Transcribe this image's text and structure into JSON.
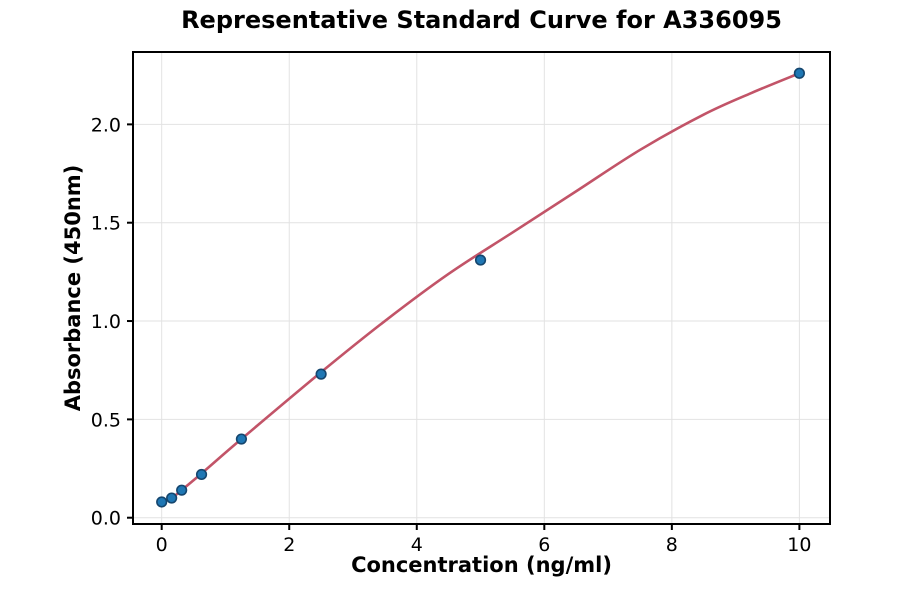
{
  "chart_data": {
    "type": "scatter",
    "title": "Representative Standard Curve for A336095",
    "xlabel": "Concentration (ng/ml)",
    "ylabel": "Absorbance (450nm)",
    "points": {
      "x": [
        0,
        0.156,
        0.313,
        0.625,
        1.25,
        2.5,
        5,
        10
      ],
      "y": [
        0.08,
        0.1,
        0.14,
        0.22,
        0.4,
        0.73,
        1.31,
        2.26
      ]
    },
    "fit_curve": {
      "x": [
        0.2,
        0.625,
        1.25,
        2.5,
        3.5,
        4.5,
        5.5,
        6.5,
        7.5,
        8.5,
        9.25,
        10
      ],
      "y": [
        0.11,
        0.225,
        0.4,
        0.74,
        1.0,
        1.24,
        1.45,
        1.66,
        1.87,
        2.05,
        2.16,
        2.26
      ]
    },
    "x_ticks": {
      "values": [
        0,
        2,
        4,
        6,
        8,
        10
      ],
      "labels": [
        "0",
        "2",
        "4",
        "6",
        "8",
        "10"
      ]
    },
    "y_ticks": {
      "values": [
        0,
        0.5,
        1.0,
        1.5,
        2.0
      ],
      "labels": [
        "0.0",
        "0.5",
        "1.0",
        "1.5",
        "2.0"
      ]
    },
    "xlim": [
      -0.45,
      10.48
    ],
    "ylim": [
      -0.032,
      2.368
    ],
    "grid": true,
    "legend": "none",
    "colors": {
      "point_fill": "#1f77b4",
      "point_edge": "#15466e",
      "line": "#c25468",
      "grid": "#e2e2e2",
      "frame": "#000000",
      "background": "#ffffff"
    }
  }
}
